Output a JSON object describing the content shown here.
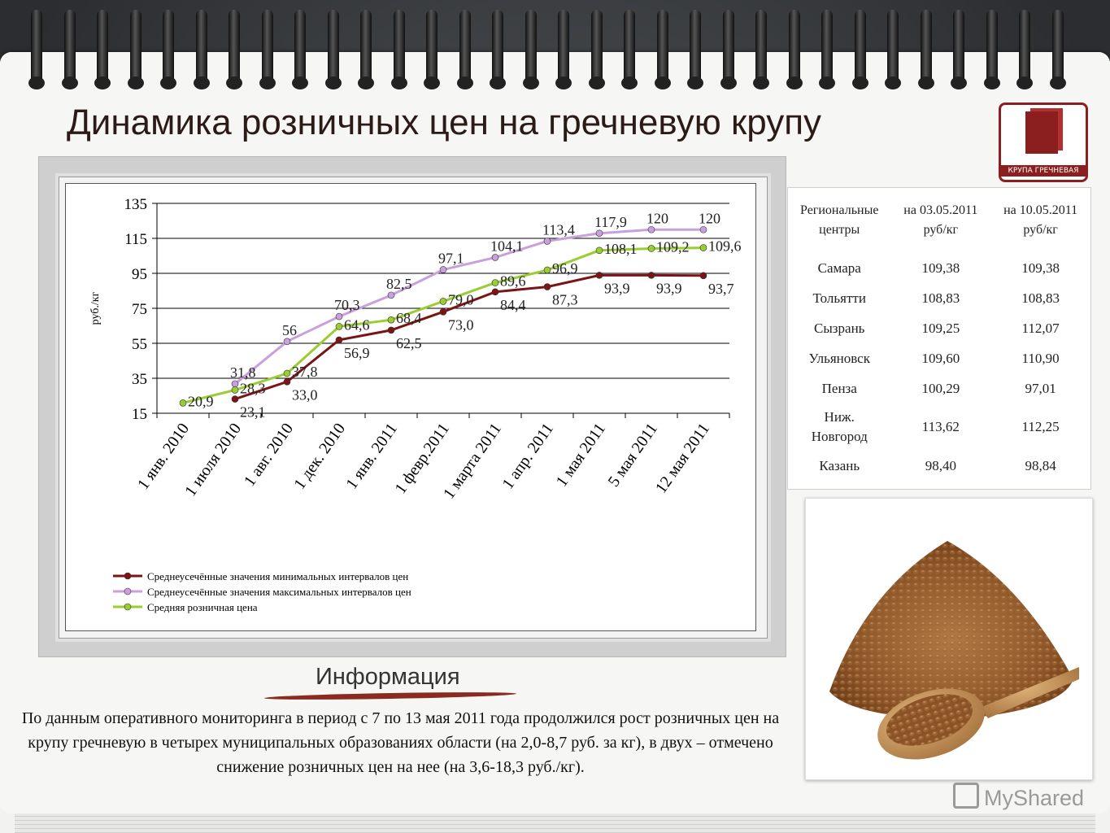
{
  "page": {
    "title": "Динамика розничных цен на гречневую крупу",
    "logo_label": "КРУПА ГРЕЧНЕВАЯ",
    "info_heading": "Информация",
    "info_text": "По данным оперативного мониторинга в период с 7 по 13 мая 2011 года продолжился рост розничных цен на крупу гречневую в четырех муниципальных образованиях области (на 2,0-8,7 руб. за кг), в двух – отмечено снижение розничных цен на нее (на 3,6-18,3 руб./кг).",
    "watermark": "MyShared"
  },
  "colors": {
    "min_series": "#7b1515",
    "max_series": "#c9a0dc",
    "avg_series": "#9acd32",
    "title_text": "#2b1a16",
    "accent": "#8b1f1f"
  },
  "chart_data": {
    "type": "line",
    "ylabel": "руб./кг",
    "ylim": [
      15,
      135
    ],
    "yticks": [
      15,
      35,
      55,
      75,
      95,
      115,
      135
    ],
    "grid": true,
    "legend_position": "bottom-left",
    "categories": [
      "1 янв. 2010",
      "1 июля 2010",
      "1 авг. 2010",
      "1 дек. 2010",
      "1 янв. 2011",
      "1 февр.2011",
      "1 марта 2011",
      "1 апр. 2011",
      "1 мая 2011",
      "5 мая 2011",
      "12 мая 2011"
    ],
    "series": [
      {
        "name": "Среднеусечённые значения минимальных интервалов цен",
        "values": [
          null,
          23.1,
          33.0,
          56.9,
          62.5,
          73.0,
          84.4,
          87.3,
          93.9,
          93.9,
          93.7
        ],
        "labels": [
          null,
          "23,1",
          "33,0",
          "56,9",
          "62,5",
          "73,0",
          "84,4",
          "87,3",
          "93,9",
          "93,9",
          "93,7"
        ]
      },
      {
        "name": "Среднеусечённые значения максимальных интервалов цен",
        "values": [
          null,
          31.8,
          56,
          70.3,
          82.5,
          97.1,
          104.1,
          113.4,
          117.9,
          120,
          120
        ],
        "labels": [
          null,
          "31,8",
          "56",
          "70,3",
          "82,5",
          "97,1",
          "104,1",
          "113,4",
          "117,9",
          "120",
          "120"
        ]
      },
      {
        "name": "Средняя розничная цена",
        "values": [
          20.9,
          28.3,
          37.8,
          64.6,
          68.4,
          79.0,
          89.6,
          96.9,
          108.1,
          109.2,
          109.6
        ],
        "labels": [
          "20,9",
          "28,3",
          "37,8",
          "64,6",
          "68,4",
          "79,0",
          "89,6",
          "96,9",
          "108,1",
          "109,2",
          "109,6"
        ]
      }
    ]
  },
  "table": {
    "headers": [
      "Региональные центры",
      "на 03.05.2011 руб/кг",
      "на 10.05.2011 руб/кг"
    ],
    "rows": [
      [
        "Самара",
        "109,38",
        "109,38"
      ],
      [
        "Тольятти",
        "108,83",
        "108,83"
      ],
      [
        "Сызрань",
        "109,25",
        "112,07"
      ],
      [
        "Ульяновск",
        "109,60",
        "110,90"
      ],
      [
        "Пенза",
        "100,29",
        "97,01"
      ],
      [
        "Ниж. Новгород",
        "113,62",
        "112,25"
      ],
      [
        "Казань",
        "98,40",
        "98,84"
      ]
    ]
  }
}
